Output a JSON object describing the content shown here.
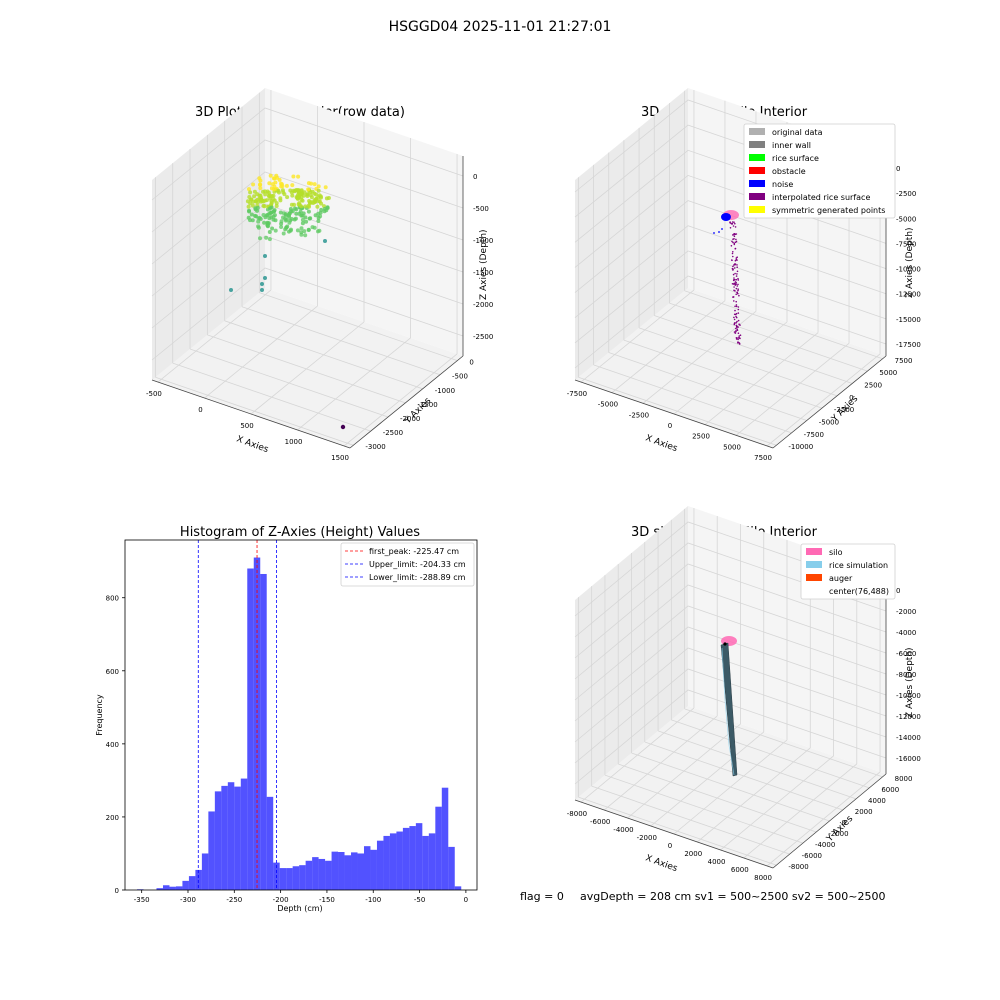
{
  "suptitle": "HSGGD04 2025-11-01 21:27:01",
  "footer": {
    "flag": "flag = 0",
    "avg": "avgDepth = 208 cm  sv1 = 500~2500  sv2 = 500~2500"
  },
  "chart_data": [
    {
      "type": "scatter",
      "title": "3D Plot of Silo Interior(row data)",
      "xlabel": "X Axies",
      "ylabel": "Y Axies",
      "zlabel": "Z Axies (Depth)",
      "x_ticks": [
        "-500",
        "0",
        "500",
        "1000",
        "1500"
      ],
      "y_ticks": [
        "0",
        "-500",
        "-1000",
        "-1500",
        "-2000",
        "-2500",
        "-3000"
      ],
      "z_ticks": [
        "0",
        "-500",
        "-1000",
        "-1500",
        "-2000",
        "-2500"
      ],
      "colormap": [
        "#440154",
        "#21918c",
        "#5ec962",
        "#b5de2b",
        "#fde725"
      ]
    },
    {
      "type": "scatter",
      "title": "3D classify of Silo Interior",
      "xlabel": "X Axies",
      "ylabel": "Y Axies",
      "zlabel": "Z Axies (Depth)",
      "x_ticks": [
        "-7500",
        "-5000",
        "-2500",
        "0",
        "2500",
        "5000",
        "7500"
      ],
      "y_ticks": [
        "7500",
        "5000",
        "2500",
        "0",
        "-2500",
        "-5000",
        "-7500",
        "-10000"
      ],
      "z_ticks": [
        "0",
        "-2500",
        "-5000",
        "-7500",
        "-10000",
        "-12500",
        "-15000",
        "-17500"
      ],
      "legend": [
        {
          "label": "original data",
          "color": "#b0b0b0"
        },
        {
          "label": "inner wall",
          "color": "#808080"
        },
        {
          "label": "rice surface",
          "color": "#00ff00"
        },
        {
          "label": "obstacle",
          "color": "#ff0000"
        },
        {
          "label": "noise",
          "color": "#0000ff"
        },
        {
          "label": "interpolated rice surface",
          "color": "#800080"
        },
        {
          "label": "symmetric generated points",
          "color": "#ffff00"
        }
      ]
    },
    {
      "type": "bar",
      "title": "Histogram of Z-Axies (Height) Values",
      "xlabel": "Depth (cm)",
      "ylabel": "Frequency",
      "xlim": [
        -368,
        12
      ],
      "ylim": [
        0,
        958
      ],
      "x_ticks": [
        -350,
        -300,
        -250,
        -200,
        -150,
        -100,
        -50,
        0
      ],
      "y_ticks": [
        0,
        200,
        400,
        600,
        800
      ],
      "bar_color": "#0000ff",
      "bin_edges": [
        -355,
        -348,
        -341,
        -334,
        -327,
        -320,
        -313,
        -306,
        -299,
        -292,
        -285,
        -278,
        -271,
        -264,
        -257,
        -250,
        -243,
        -236,
        -229,
        -222,
        -215,
        -208,
        -201,
        -194,
        -187,
        -180,
        -173,
        -166,
        -159,
        -152,
        -145,
        -138,
        -131,
        -124,
        -117,
        -110,
        -103,
        -96,
        -89,
        -82,
        -75,
        -68,
        -61,
        -54,
        -47,
        -40,
        -33,
        -26,
        -19,
        -12,
        -5
      ],
      "values": [
        2,
        0,
        0,
        5,
        13,
        9,
        10,
        25,
        38,
        55,
        100,
        215,
        270,
        285,
        295,
        283,
        305,
        880,
        910,
        865,
        255,
        75,
        60,
        60,
        65,
        68,
        80,
        90,
        85,
        80,
        105,
        104,
        95,
        103,
        100,
        120,
        110,
        135,
        148,
        155,
        160,
        170,
        175,
        183,
        148,
        155,
        228,
        280,
        118,
        10
      ],
      "lines": [
        {
          "label": "first_peak: -225.47 cm",
          "x": -225.47,
          "color": "#ff0000"
        },
        {
          "label": "Upper_limit: -204.33 cm",
          "x": -204.33,
          "color": "#0000ff"
        },
        {
          "label": "Lower_limit: -288.89 cm",
          "x": -288.89,
          "color": "#0000ff"
        }
      ]
    },
    {
      "type": "scatter",
      "title": "3D simulation of Silo Interior",
      "xlabel": "X Axies",
      "ylabel": "Y Axies",
      "zlabel": "Z Axies (Depth)",
      "x_ticks": [
        "-8000",
        "-6000",
        "-4000",
        "-2000",
        "0",
        "2000",
        "4000",
        "6000",
        "8000"
      ],
      "y_ticks": [
        "8000",
        "6000",
        "4000",
        "2000",
        "0",
        "-2000",
        "-4000",
        "-6000",
        "-8000"
      ],
      "z_ticks": [
        "0",
        "-2000",
        "-4000",
        "-6000",
        "-8000",
        "-10000",
        "-12000",
        "-14000",
        "-16000"
      ],
      "legend": [
        {
          "label": "silo",
          "color": "#ff69b4"
        },
        {
          "label": "rice simulation",
          "color": "#87ceeb"
        },
        {
          "label": "auger",
          "color": "#ff4500"
        },
        {
          "label": "center(76,488)",
          "color": ""
        }
      ]
    }
  ]
}
